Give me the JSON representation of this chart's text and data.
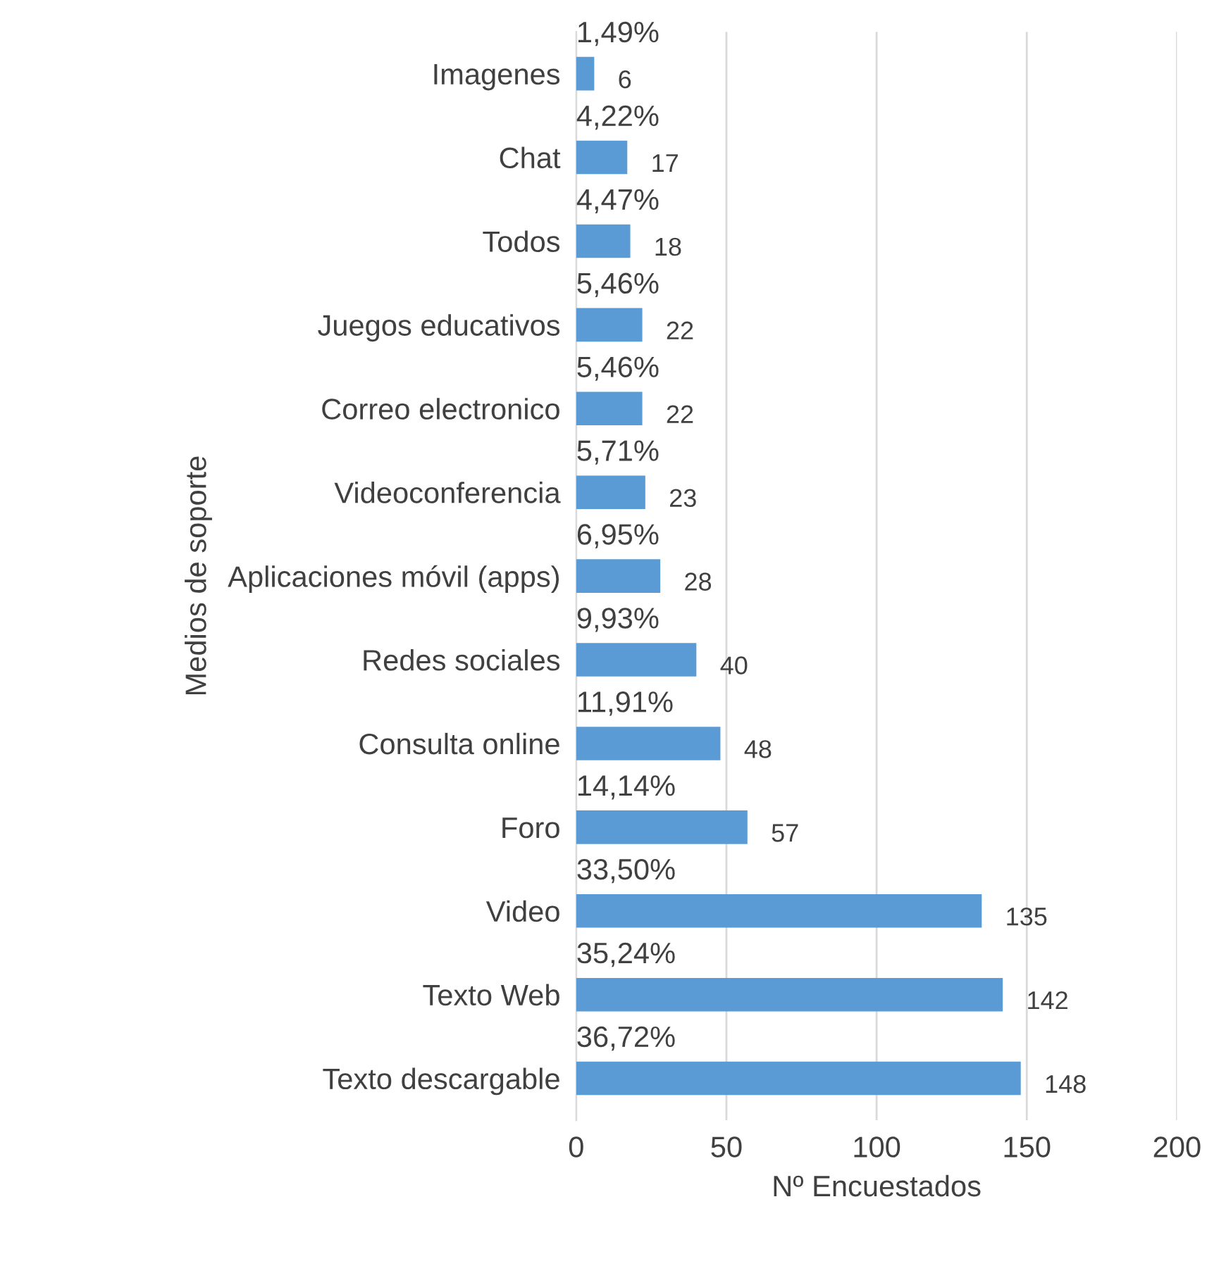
{
  "chart_data": {
    "type": "bar",
    "orientation": "horizontal",
    "xlabel": "Nº Encuestados",
    "ylabel": "Medios de soporte",
    "categories": [
      "Imagenes",
      "Chat",
      "Todos",
      "Juegos educativos",
      "Correo electronico",
      "Videoconferencia",
      "Aplicaciones móvil (apps)",
      "Redes sociales",
      "Consulta online",
      "Foro",
      "Video",
      "Texto Web",
      "Texto descargable"
    ],
    "values": [
      6,
      17,
      18,
      22,
      22,
      23,
      28,
      40,
      48,
      57,
      135,
      142,
      148
    ],
    "color": "#5b9bd5",
    "data_labels": true,
    "xlim": [
      0,
      200
    ],
    "xticks": [
      0,
      50,
      100,
      150,
      200
    ],
    "grid": "x",
    "annotations": [
      "1,49%",
      "4,22%",
      "4,47%",
      "5,46%",
      "5,46%",
      "5,71%",
      "6,95%",
      "9,93%",
      "11,91%",
      "14,14%",
      "33,50%",
      "35,24%",
      "36,72%"
    ]
  }
}
